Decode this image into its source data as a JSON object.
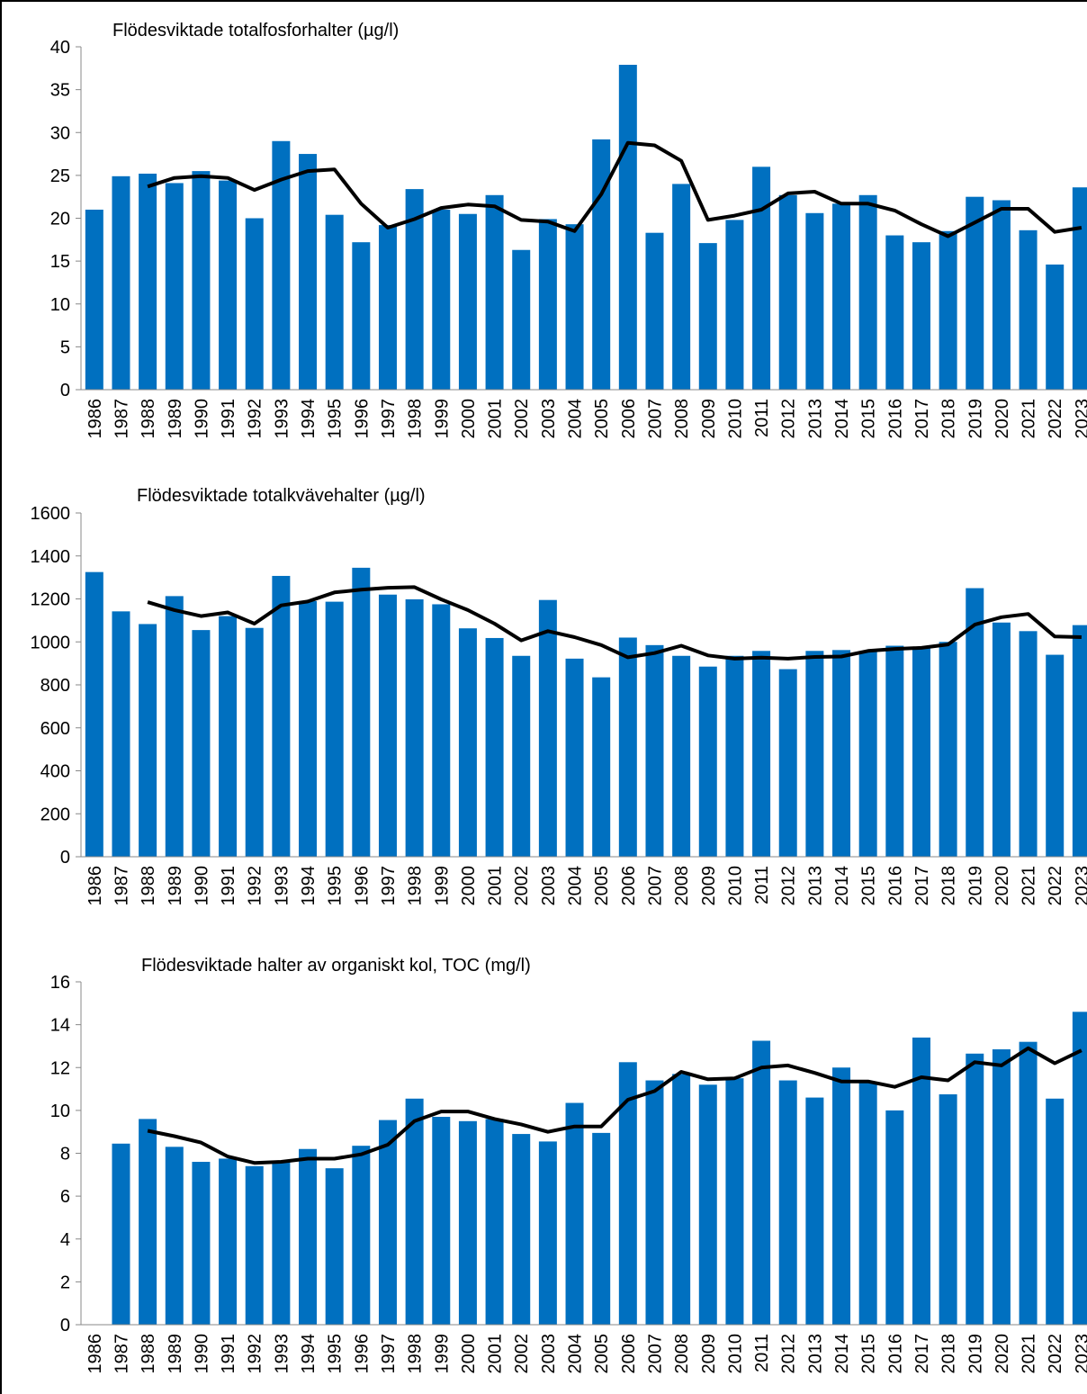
{
  "chart_data": [
    {
      "type": "bar_line",
      "title": "Flödesviktade totalfosforhalter (µg/l)",
      "categories": [
        "1986",
        "1987",
        "1988",
        "1989",
        "1990",
        "1991",
        "1992",
        "1993",
        "1994",
        "1995",
        "1996",
        "1997",
        "1998",
        "1999",
        "2000",
        "2001",
        "2002",
        "2003",
        "2004",
        "2005",
        "2006",
        "2007",
        "2008",
        "2009",
        "2010",
        "2011",
        "2012",
        "2013",
        "2014",
        "2015",
        "2016",
        "2017",
        "2018",
        "2019",
        "2020",
        "2021",
        "2022",
        "2023"
      ],
      "series": [
        {
          "type": "bar",
          "color": "#0070c0",
          "values": [
            21.0,
            24.9,
            25.2,
            24.1,
            25.5,
            24.4,
            20.0,
            29.0,
            27.5,
            20.4,
            17.2,
            19.2,
            23.4,
            21.0,
            20.5,
            22.7,
            16.3,
            19.9,
            19.3,
            29.2,
            37.9,
            18.3,
            24.0,
            17.1,
            19.8,
            26.0,
            22.7,
            20.6,
            21.7,
            22.7,
            18.0,
            17.2,
            18.5,
            22.5,
            22.1,
            18.6,
            14.6,
            23.6
          ]
        },
        {
          "type": "line",
          "color": "#000000",
          "values": [
            null,
            null,
            23.7,
            24.7,
            24.9,
            24.7,
            23.3,
            24.5,
            25.5,
            25.7,
            21.7,
            18.9,
            19.9,
            21.2,
            21.6,
            21.4,
            19.8,
            19.6,
            18.5,
            22.8,
            28.8,
            28.5,
            26.7,
            19.8,
            20.3,
            21.0,
            22.9,
            23.1,
            21.7,
            21.7,
            20.9,
            19.3,
            17.9,
            19.5,
            21.1,
            21.1,
            18.4,
            18.9
          ]
        }
      ],
      "ylim": [
        0,
        40
      ],
      "yticks": [
        0,
        5,
        10,
        15,
        20,
        25,
        30,
        35,
        40
      ]
    },
    {
      "type": "bar_line",
      "title": "Flödesviktade totalkvävehalter (µg/l)",
      "categories": [
        "1986",
        "1987",
        "1988",
        "1989",
        "1990",
        "1991",
        "1992",
        "1993",
        "1994",
        "1995",
        "1996",
        "1997",
        "1998",
        "1999",
        "2000",
        "2001",
        "2002",
        "2003",
        "2004",
        "2005",
        "2006",
        "2007",
        "2008",
        "2009",
        "2010",
        "2011",
        "2012",
        "2013",
        "2014",
        "2015",
        "2016",
        "2017",
        "2018",
        "2019",
        "2020",
        "2021",
        "2022",
        "2023"
      ],
      "series": [
        {
          "type": "bar",
          "color": "#0070c0",
          "values": [
            1325,
            1142,
            1083,
            1213,
            1055,
            1120,
            1065,
            1307,
            1190,
            1187,
            1345,
            1220,
            1198,
            1175,
            1063,
            1018,
            935,
            1195,
            922,
            835,
            1020,
            985,
            935,
            885,
            935,
            958,
            873,
            958,
            962,
            955,
            982,
            975,
            1000,
            1250,
            1090,
            1050,
            940,
            1078
          ]
        },
        {
          "type": "line",
          "color": "#000000",
          "values": [
            null,
            null,
            1185,
            1148,
            1120,
            1137,
            1085,
            1170,
            1188,
            1230,
            1243,
            1252,
            1255,
            1198,
            1148,
            1085,
            1007,
            1050,
            1022,
            985,
            928,
            948,
            982,
            937,
            922,
            927,
            922,
            930,
            932,
            958,
            967,
            972,
            988,
            1080,
            1115,
            1130,
            1025,
            1022
          ]
        }
      ],
      "ylim": [
        0,
        1600
      ],
      "yticks": [
        0,
        200,
        400,
        600,
        800,
        1000,
        1200,
        1400,
        1600
      ]
    },
    {
      "type": "bar_line",
      "title": "Flödesviktade halter av organiskt kol, TOC (mg/l)",
      "categories": [
        "1986",
        "1987",
        "1988",
        "1989",
        "1990",
        "1991",
        "1992",
        "1993",
        "1994",
        "1995",
        "1996",
        "1997",
        "1998",
        "1999",
        "2000",
        "2001",
        "2002",
        "2003",
        "2004",
        "2005",
        "2006",
        "2007",
        "2008",
        "2009",
        "2010",
        "2011",
        "2012",
        "2013",
        "2014",
        "2015",
        "2016",
        "2017",
        "2018",
        "2019",
        "2020",
        "2021",
        "2022",
        "2023"
      ],
      "series": [
        {
          "type": "bar",
          "color": "#0070c0",
          "values": [
            null,
            8.45,
            9.6,
            8.3,
            7.6,
            7.75,
            7.4,
            7.65,
            8.2,
            7.3,
            8.35,
            9.55,
            10.55,
            9.7,
            9.5,
            9.6,
            8.9,
            8.55,
            10.35,
            8.95,
            12.25,
            11.4,
            11.7,
            11.2,
            11.5,
            13.25,
            11.4,
            10.6,
            12.0,
            11.3,
            10.0,
            13.4,
            10.75,
            12.65,
            12.85,
            13.2,
            10.55,
            14.6
          ]
        },
        {
          "type": "line",
          "color": "#000000",
          "values": [
            null,
            null,
            9.05,
            8.8,
            8.5,
            7.85,
            7.55,
            7.6,
            7.75,
            7.75,
            7.95,
            8.4,
            9.5,
            9.95,
            9.95,
            9.6,
            9.35,
            9.0,
            9.25,
            9.25,
            10.5,
            10.9,
            11.8,
            11.45,
            11.5,
            12.0,
            12.1,
            11.75,
            11.35,
            11.35,
            11.1,
            11.55,
            11.4,
            12.25,
            12.1,
            12.9,
            12.2,
            12.8
          ]
        }
      ],
      "ylim": [
        0,
        16
      ],
      "yticks": [
        0,
        2,
        4,
        6,
        8,
        10,
        12,
        14,
        16
      ]
    }
  ]
}
